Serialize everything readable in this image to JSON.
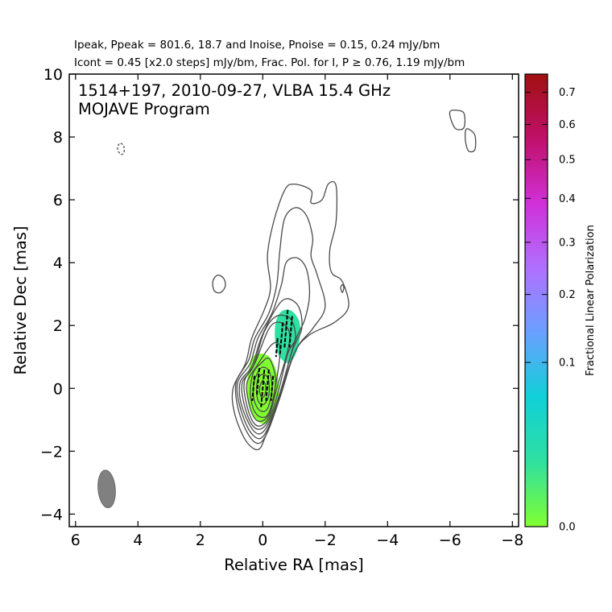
{
  "header": {
    "line1": "Ipeak, Ppeak = 801.6, 18.7 and Inoise, Pnoise = 0.15, 0.24 mJy/bm",
    "line2": "Icont = 0.45 [x2.0 steps] mJy/bm, Frac. Pol. for I, P ≥ 0.76, 1.19 mJy/bm"
  },
  "chart_data": {
    "type": "contour",
    "title": "1514+197, 2010-09-27, VLBA 15.4 GHz",
    "subtitle": "MOJAVE Program",
    "xlabel": "Relative RA [mas]",
    "ylabel": "Relative Dec [mas]",
    "xlim": [
      6.2,
      -8.2
    ],
    "ylim": [
      -4.4,
      10
    ],
    "xticks": [
      6,
      4,
      2,
      0,
      -2,
      -4,
      -6,
      -8
    ],
    "xtick_labels": [
      "6",
      "4",
      "2",
      "0",
      "−2",
      "−4",
      "−6",
      "−8"
    ],
    "yticks": [
      -4,
      -2,
      0,
      2,
      4,
      6,
      8,
      10
    ],
    "ytick_labels": [
      "−4",
      "−2",
      "0",
      "2",
      "4",
      "6",
      "8",
      "10"
    ],
    "peak_intensity_mJy_per_beam": 801.6,
    "peak_polarized_mJy_per_beam": 18.7,
    "noise_I_mJy_per_beam": 0.15,
    "noise_P_mJy_per_beam": 0.24,
    "lowest_contour_mJy_per_beam": 0.45,
    "contour_step_factor": 2.0,
    "contours": [
      {
        "level": 0.45,
        "pts": [
          [
            0.55,
            0.8
          ],
          [
            0.35,
            1.6
          ],
          [
            -0.05,
            2.5
          ],
          [
            -0.25,
            3.2
          ],
          [
            -0.15,
            4.2
          ],
          [
            -0.35,
            5.3
          ],
          [
            -0.7,
            6.3
          ],
          [
            -1.0,
            6.5
          ],
          [
            -1.55,
            6.3
          ],
          [
            -1.55,
            5.9
          ],
          [
            -1.9,
            6.0
          ],
          [
            -2.1,
            6.5
          ],
          [
            -2.35,
            6.45
          ],
          [
            -2.35,
            5.3
          ],
          [
            -2.15,
            4.4
          ],
          [
            -2.2,
            3.7
          ],
          [
            -2.55,
            3.4
          ],
          [
            -2.75,
            2.6
          ],
          [
            -2.3,
            2.1
          ],
          [
            -1.5,
            1.7
          ],
          [
            -1.0,
            1.1
          ],
          [
            -0.5,
            -0.4
          ],
          [
            -0.1,
            -1.5
          ],
          [
            0.15,
            -1.95
          ],
          [
            0.55,
            -1.65
          ],
          [
            0.9,
            -0.8
          ],
          [
            0.95,
            0.0
          ]
        ]
      },
      {
        "level": 0.9,
        "pts": [
          [
            0.45,
            0.9
          ],
          [
            0.25,
            1.6
          ],
          [
            -0.2,
            2.4
          ],
          [
            -0.45,
            3.3
          ],
          [
            -0.55,
            4.4
          ],
          [
            -0.7,
            5.4
          ],
          [
            -1.05,
            5.75
          ],
          [
            -1.4,
            5.5
          ],
          [
            -1.6,
            4.8
          ],
          [
            -1.55,
            4.2
          ],
          [
            -1.75,
            3.6
          ],
          [
            -2.0,
            2.6
          ],
          [
            -1.6,
            1.9
          ],
          [
            -1.05,
            1.2
          ],
          [
            -0.55,
            -0.3
          ],
          [
            -0.15,
            -1.4
          ],
          [
            0.15,
            -1.75
          ],
          [
            0.5,
            -1.4
          ],
          [
            0.8,
            -0.6
          ],
          [
            0.85,
            0.2
          ]
        ]
      },
      {
        "level": 1.8,
        "pts": [
          [
            0.4,
            0.8
          ],
          [
            0.15,
            1.6
          ],
          [
            -0.3,
            2.4
          ],
          [
            -0.6,
            3.3
          ],
          [
            -0.75,
            4.0
          ],
          [
            -1.1,
            4.15
          ],
          [
            -1.4,
            3.8
          ],
          [
            -1.5,
            3.0
          ],
          [
            -1.35,
            2.2
          ],
          [
            -1.0,
            1.4
          ],
          [
            -0.55,
            -0.2
          ],
          [
            -0.2,
            -1.2
          ],
          [
            0.1,
            -1.6
          ],
          [
            0.45,
            -1.3
          ],
          [
            0.75,
            -0.5
          ],
          [
            0.8,
            0.2
          ]
        ]
      },
      {
        "level": 3.6,
        "pts": [
          [
            0.35,
            0.7
          ],
          [
            0.05,
            1.6
          ],
          [
            -0.4,
            2.5
          ],
          [
            -0.75,
            2.85
          ],
          [
            -1.15,
            2.6
          ],
          [
            -1.25,
            1.9
          ],
          [
            -0.95,
            1.2
          ],
          [
            -0.55,
            -0.15
          ],
          [
            -0.2,
            -1.1
          ],
          [
            0.1,
            -1.45
          ],
          [
            0.4,
            -1.2
          ],
          [
            0.7,
            -0.45
          ],
          [
            0.72,
            0.2
          ]
        ]
      },
      {
        "level": 7.2,
        "pts": [
          [
            0.3,
            0.7
          ],
          [
            -0.05,
            1.8
          ],
          [
            -0.45,
            2.3
          ],
          [
            -0.9,
            2.2
          ],
          [
            -1.05,
            1.6
          ],
          [
            -0.8,
            1.1
          ],
          [
            -0.5,
            -0.1
          ],
          [
            -0.2,
            -1.0
          ],
          [
            0.1,
            -1.3
          ],
          [
            0.38,
            -1.1
          ],
          [
            0.62,
            -0.4
          ],
          [
            0.65,
            0.2
          ]
        ]
      },
      {
        "level": 14.4,
        "pts": [
          [
            0.25,
            0.8
          ],
          [
            -0.2,
            1.9
          ],
          [
            -0.55,
            2.1
          ],
          [
            -0.85,
            1.8
          ],
          [
            -0.8,
            1.2
          ],
          [
            -0.45,
            0.0
          ],
          [
            -0.2,
            -0.9
          ],
          [
            0.1,
            -1.2
          ],
          [
            0.35,
            -1.0
          ],
          [
            0.55,
            -0.35
          ],
          [
            0.58,
            0.25
          ]
        ]
      },
      {
        "level": 28.8,
        "pts": [
          [
            0.2,
            0.7
          ],
          [
            -0.3,
            1.4
          ],
          [
            -0.55,
            1.3
          ],
          [
            -0.45,
            0.3
          ],
          [
            -0.2,
            -0.8
          ],
          [
            0.1,
            -1.05
          ],
          [
            0.32,
            -0.85
          ],
          [
            0.48,
            -0.3
          ],
          [
            0.5,
            0.2
          ]
        ]
      },
      {
        "level": 57.6,
        "pts": [
          [
            0.05,
            0.8
          ],
          [
            -0.2,
            0.95
          ],
          [
            -0.4,
            0.4
          ],
          [
            -0.35,
            -0.3
          ],
          [
            -0.15,
            -0.85
          ],
          [
            0.1,
            -0.9
          ],
          [
            0.3,
            -0.65
          ],
          [
            0.4,
            -0.1
          ],
          [
            0.3,
            0.5
          ]
        ]
      },
      {
        "level": 115.2,
        "pts": [
          [
            0.05,
            0.65
          ],
          [
            -0.2,
            0.55
          ],
          [
            -0.3,
            0.0
          ],
          [
            -0.15,
            -0.65
          ],
          [
            0.1,
            -0.7
          ],
          [
            0.28,
            -0.35
          ],
          [
            0.28,
            0.2
          ]
        ]
      },
      {
        "level": 230.4,
        "pts": [
          [
            0.0,
            0.45
          ],
          [
            -0.18,
            0.3
          ],
          [
            -0.2,
            -0.2
          ],
          [
            -0.05,
            -0.5
          ],
          [
            0.12,
            -0.45
          ],
          [
            0.2,
            -0.1
          ],
          [
            0.15,
            0.3
          ]
        ]
      },
      {
        "level": 460.8,
        "pts": [
          [
            0.0,
            0.25
          ],
          [
            -0.1,
            0.05
          ],
          [
            -0.05,
            -0.25
          ],
          [
            0.06,
            -0.25
          ],
          [
            0.1,
            0.0
          ]
        ]
      }
    ],
    "extra_contours": [
      {
        "level": 0.45,
        "pts": [
          [
            1.45,
            3.6
          ],
          [
            1.25,
            3.5
          ],
          [
            1.2,
            3.25
          ],
          [
            1.35,
            3.05
          ],
          [
            1.55,
            3.1
          ],
          [
            1.6,
            3.4
          ]
        ]
      },
      {
        "level": 0.45,
        "pts": [
          [
            -6.2,
            8.85
          ],
          [
            -6.45,
            8.75
          ],
          [
            -6.45,
            8.3
          ],
          [
            -6.2,
            8.25
          ],
          [
            -6.05,
            8.5
          ],
          [
            -6.0,
            8.8
          ]
        ]
      },
      {
        "level": 0.45,
        "pts": [
          [
            -6.6,
            8.25
          ],
          [
            -6.8,
            8.05
          ],
          [
            -6.8,
            7.6
          ],
          [
            -6.6,
            7.55
          ],
          [
            -6.5,
            7.85
          ],
          [
            -6.5,
            8.2
          ]
        ]
      },
      {
        "level": 0.45,
        "pts": [
          [
            -2.55,
            3.3
          ],
          [
            -2.6,
            3.2
          ],
          [
            -2.55,
            3.05
          ],
          [
            -2.5,
            3.2
          ]
        ]
      },
      {
        "level": -0.45,
        "pts": [
          [
            4.55,
            7.8
          ],
          [
            4.45,
            7.7
          ],
          [
            4.45,
            7.5
          ],
          [
            4.55,
            7.45
          ],
          [
            4.65,
            7.6
          ],
          [
            4.62,
            7.75
          ]
        ]
      }
    ],
    "polarization_regions": [
      {
        "fraction": 0.02,
        "pts": [
          [
            0.35,
            0.95
          ],
          [
            -0.15,
            1.05
          ],
          [
            -0.45,
            0.5
          ],
          [
            -0.5,
            -0.3
          ],
          [
            -0.15,
            -1.1
          ],
          [
            0.3,
            -0.9
          ],
          [
            0.5,
            -0.1
          ]
        ]
      },
      {
        "fraction": 0.07,
        "pts": [
          [
            -0.6,
            2.45
          ],
          [
            -0.95,
            2.45
          ],
          [
            -1.2,
            2.0
          ],
          [
            -1.1,
            1.2
          ],
          [
            -0.8,
            0.8
          ],
          [
            -0.45,
            1.2
          ],
          [
            -0.4,
            2.0
          ]
        ]
      }
    ],
    "evpa_ticks": [
      {
        "x": 0.3,
        "y": 0.0,
        "angle": 5,
        "len": 0.8
      },
      {
        "x": 0.15,
        "y": 0.2,
        "angle": 5,
        "len": 0.9
      },
      {
        "x": 0.0,
        "y": 0.0,
        "angle": 5,
        "len": 1.2
      },
      {
        "x": -0.15,
        "y": 0.1,
        "angle": 5,
        "len": 1.0
      },
      {
        "x": -0.3,
        "y": 0.0,
        "angle": 5,
        "len": 0.8
      },
      {
        "x": -0.6,
        "y": 1.6,
        "angle": 5,
        "len": 1.0
      },
      {
        "x": -0.75,
        "y": 1.9,
        "angle": 5,
        "len": 1.2
      },
      {
        "x": -0.9,
        "y": 1.8,
        "angle": 5,
        "len": 1.0
      },
      {
        "x": -0.45,
        "y": 1.3,
        "angle": 5,
        "len": 0.6
      }
    ],
    "beam": {
      "x": 5.0,
      "y": -3.2,
      "major_mas": 1.2,
      "minor_mas": 0.55,
      "pa_deg": -5
    },
    "colorbar": {
      "label": "Fractional Linear Polarization",
      "ticks": [
        0.0,
        0.1,
        0.2,
        0.3,
        0.4,
        0.5,
        0.6,
        0.7
      ],
      "tick_labels": [
        "0.0",
        "0.1",
        "0.2",
        "0.3",
        "0.4",
        "0.5",
        "0.6",
        "0.7"
      ],
      "range": [
        0.0,
        0.76
      ],
      "colors": [
        "#80ff30",
        "#30e0a0",
        "#10d0d8",
        "#6aa0ff",
        "#b070ff",
        "#d030d8",
        "#c0106a",
        "#a01010"
      ]
    }
  }
}
